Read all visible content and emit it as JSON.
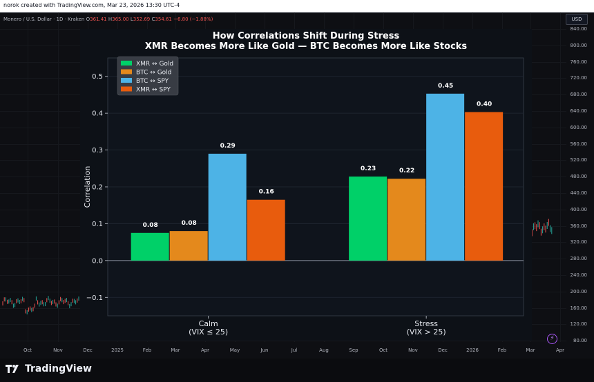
{
  "header": {
    "created_text": "norok created with TradingView.com, Mar 23, 2026 13:30 UTC-4"
  },
  "symbol": {
    "name": "Monero / U.S. Dollar · 1D · Kraken",
    "o_label": "O",
    "o_value": "361.41",
    "h_label": "H",
    "h_value": "365.00",
    "l_label": "L",
    "l_value": "352.69",
    "c_label": "C",
    "c_value": "354.61",
    "change": "−6.80 (−1.88%)"
  },
  "currency_button": "USD",
  "price_axis": [
    "840.00",
    "800.00",
    "760.00",
    "720.00",
    "680.00",
    "640.00",
    "600.00",
    "560.00",
    "520.00",
    "480.00",
    "440.00",
    "400.00",
    "360.00",
    "320.00",
    "280.00",
    "240.00",
    "200.00",
    "160.00",
    "120.00",
    "80.00"
  ],
  "time_axis": [
    "Oct",
    "Nov",
    "Dec",
    "2025",
    "Feb",
    "Mar",
    "Apr",
    "May",
    "Jun",
    "Jul",
    "Aug",
    "Sep",
    "Oct",
    "Nov",
    "Dec",
    "2026",
    "Feb",
    "Mar",
    "Apr"
  ],
  "footer": {
    "brand": "TradingView"
  },
  "colors": {
    "xmr_gold": "#00d068",
    "btc_gold": "#e4891c",
    "btc_spy": "#4db3e6",
    "xmr_spy": "#e85c0d"
  },
  "chart_data": {
    "type": "bar",
    "title": "How Correlations Shift During Stress",
    "subtitle": "XMR Becomes More Like Gold — BTC Becomes More Like Stocks",
    "ylabel": "Correlation",
    "xlabel": "",
    "ylim": [
      -0.15,
      0.55
    ],
    "yticks": [
      "−0.1",
      "0.0",
      "0.1",
      "0.2",
      "0.3",
      "0.4",
      "0.5"
    ],
    "ytick_values": [
      -0.1,
      0,
      0.1,
      0.2,
      0.3,
      0.4,
      0.5
    ],
    "categories": [
      [
        "Calm",
        "(VIX ≤ 25)"
      ],
      [
        "Stress",
        "(VIX > 25)"
      ]
    ],
    "series": [
      {
        "name": "XMR ↔ Gold",
        "values": [
          0.075,
          0.228
        ],
        "labels": [
          "0.08",
          "0.23"
        ]
      },
      {
        "name": "BTC ↔ Gold",
        "values": [
          0.08,
          0.222
        ],
        "labels": [
          "0.08",
          "0.22"
        ]
      },
      {
        "name": "BTC ↔ SPY",
        "values": [
          0.29,
          0.453
        ],
        "labels": [
          "0.29",
          "0.45"
        ]
      },
      {
        "name": "XMR ↔ SPY",
        "values": [
          0.165,
          0.403
        ],
        "labels": [
          "0.16",
          "0.40"
        ]
      }
    ],
    "legend_position": "top-left",
    "grid": true
  }
}
